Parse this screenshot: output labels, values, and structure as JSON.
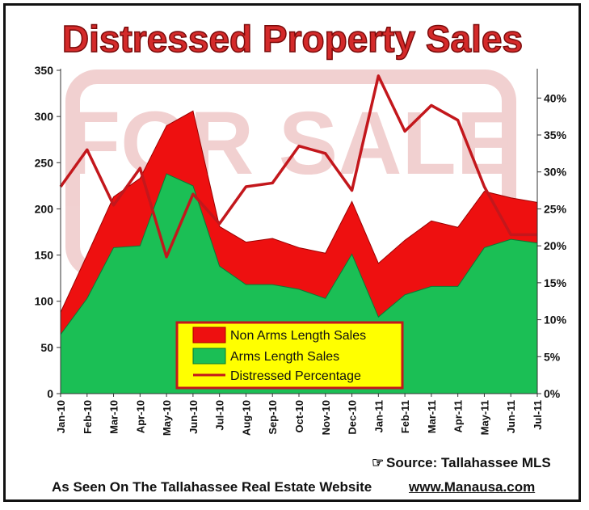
{
  "colors": {
    "non_arms": "#ee1010",
    "arms": "#1bbf55",
    "distressed_line": "#c3171c",
    "title_fill": "#d42a2a",
    "legend_bg": "#ffff00"
  },
  "legend": {
    "non_arms_label": "Non Arms Length Sales",
    "arms_label": "Arms Length Sales",
    "pct_label": "Distressed Percentage"
  },
  "footer": {
    "source": "Source: Tallahassee MLS",
    "seen_on": "As Seen On The Tallahassee Real Estate Website",
    "website": "www.Manausa.com"
  },
  "chart_data": {
    "type": "area",
    "title": "Distressed Property Sales",
    "categories": [
      "Jan-10",
      "Feb-10",
      "Mar-10",
      "Apr-10",
      "May-10",
      "Jun-10",
      "Jul-10",
      "Aug-10",
      "Sep-10",
      "Oct-10",
      "Nov-10",
      "Dec-10",
      "Jan-11",
      "Feb-11",
      "Mar-11",
      "Apr-11",
      "May-11",
      "Jun-11",
      "Jul-11"
    ],
    "y_left": {
      "range": [
        0,
        350
      ],
      "ticks": [
        "0",
        "50",
        "100",
        "150",
        "200",
        "250",
        "300",
        "350"
      ]
    },
    "y_right": {
      "range": [
        0,
        0.4375
      ],
      "ticks": [
        "0%",
        "5%",
        "10%",
        "15%",
        "20%",
        "25%",
        "30%",
        "35%",
        "40%"
      ]
    },
    "series": [
      {
        "name": "Non Arms Length Sales",
        "kind": "stacked-area",
        "axis": "left",
        "values": [
          24,
          47,
          55,
          73,
          52,
          81,
          43,
          46,
          50,
          45,
          49,
          57,
          58,
          59,
          71,
          64,
          61,
          45,
          44
        ]
      },
      {
        "name": "Arms Length Sales",
        "kind": "stacked-area",
        "axis": "left",
        "values": [
          64,
          103,
          158,
          160,
          238,
          225,
          138,
          118,
          118,
          113,
          103,
          151,
          83,
          107,
          116,
          116,
          158,
          167,
          163
        ]
      },
      {
        "name": "Distressed Percentage",
        "kind": "line",
        "axis": "right",
        "values": [
          0.28,
          0.33,
          0.255,
          0.305,
          0.185,
          0.27,
          0.23,
          0.28,
          0.285,
          0.335,
          0.325,
          0.275,
          0.43,
          0.355,
          0.39,
          0.37,
          0.28,
          0.215,
          0.215
        ]
      }
    ],
    "legend_position": "bottom-center"
  }
}
